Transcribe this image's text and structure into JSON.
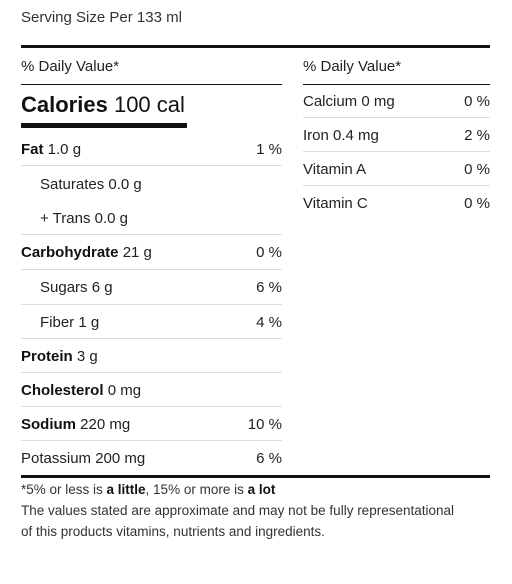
{
  "serving_size": "Serving Size Per 133 ml",
  "left": {
    "header": "% Daily Value*",
    "calories_label": "Calories",
    "calories_value": "100 cal",
    "rows": [
      {
        "name": "Fat",
        "amount": "1.0 g",
        "dv": "1 %"
      },
      {
        "name": "Saturates",
        "amount": "0.0 g",
        "dv": ""
      },
      {
        "name": "+ Trans",
        "amount": "0.0 g",
        "dv": ""
      },
      {
        "name": "Carbohydrate",
        "amount": "21 g",
        "dv": "0 %"
      },
      {
        "name": "Sugars",
        "amount": "6 g",
        "dv": "6 %"
      },
      {
        "name": "Fiber",
        "amount": "1 g",
        "dv": "4 %"
      },
      {
        "name": "Protein",
        "amount": "3 g",
        "dv": ""
      },
      {
        "name": "Cholesterol",
        "amount": "0 mg",
        "dv": ""
      },
      {
        "name": "Sodium",
        "amount": "220 mg",
        "dv": "10 %"
      },
      {
        "name": "Potassium",
        "amount": "200 mg",
        "dv": "6 %"
      }
    ]
  },
  "right": {
    "header": "% Daily Value*",
    "rows": [
      {
        "name": "Calcium",
        "amount": "0 mg",
        "dv": "0 %"
      },
      {
        "name": "Iron",
        "amount": "0.4 mg",
        "dv": "2 %"
      },
      {
        "name": "Vitamin A",
        "amount": "",
        "dv": "0 %"
      },
      {
        "name": "Vitamin C",
        "amount": "",
        "dv": "0 %"
      }
    ]
  },
  "footnote": {
    "part1": "*5% or less is ",
    "little": "a little",
    "part2": ", 15% or more is ",
    "lot": "a lot",
    "disclaimer_line1": "The values stated are approximate and may not be fully representational",
    "disclaimer_line2": "of this products vitamins, nutrients and ingredients."
  }
}
